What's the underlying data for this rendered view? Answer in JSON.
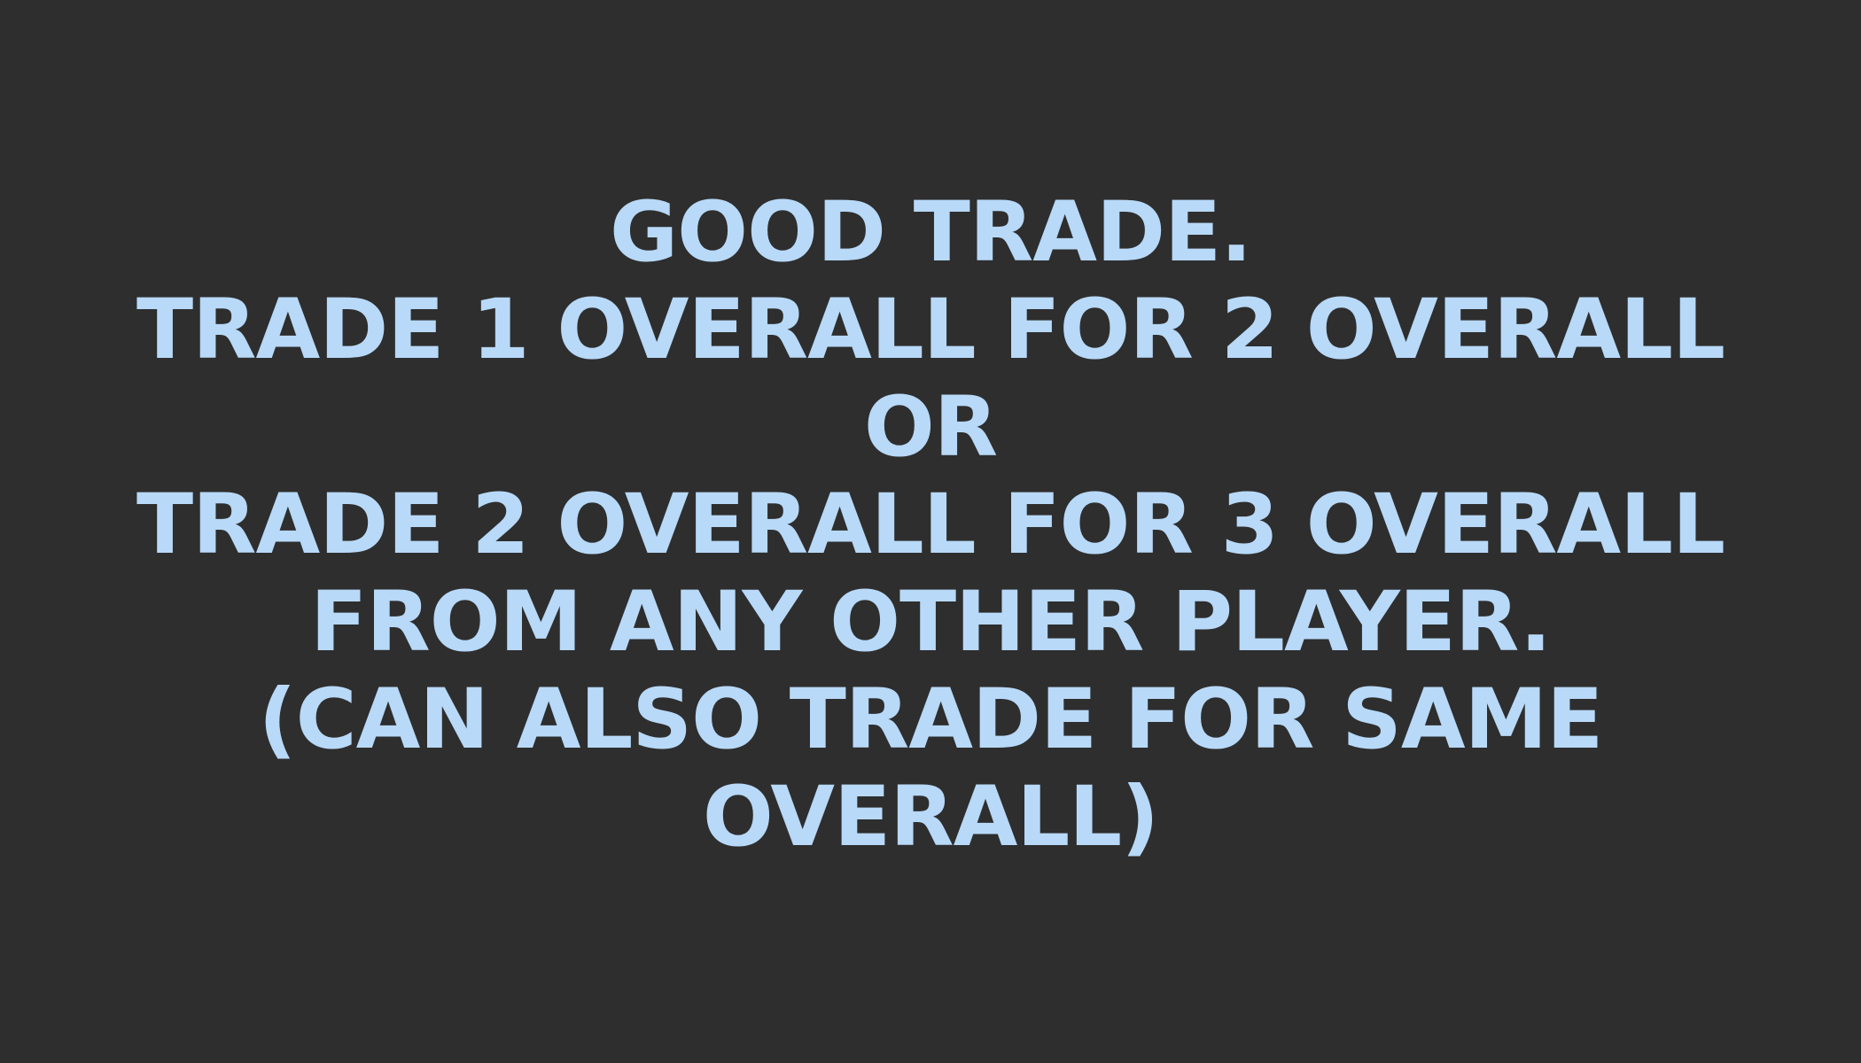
{
  "slide": {
    "background_color": "#2e2e2e",
    "text_color": "#b8d9f8",
    "lines": [
      "GOOD TRADE.",
      "TRADE 1 OVERALL FOR 2 OVERALL",
      "OR",
      "TRADE 2 OVERALL FOR 3 OVERALL",
      "FROM ANY OTHER PLAYER.",
      "(CAN ALSO TRADE FOR SAME",
      "OVERALL)"
    ]
  }
}
